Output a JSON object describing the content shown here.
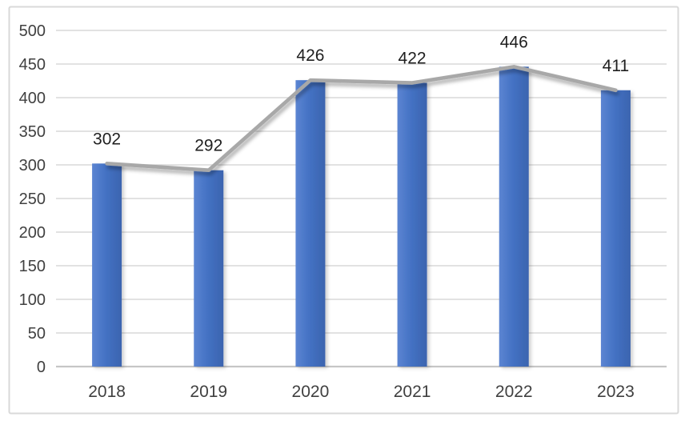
{
  "chart_data": {
    "type": "bar",
    "subtype": "bar-with-line-overlay",
    "title": "",
    "xlabel": "",
    "ylabel": "",
    "categories": [
      "2018",
      "2019",
      "2020",
      "2021",
      "2022",
      "2023"
    ],
    "series": [
      {
        "name": "bars",
        "type": "bar",
        "values": [
          302,
          292,
          426,
          422,
          446,
          411
        ]
      },
      {
        "name": "trend-line",
        "type": "line",
        "values": [
          302,
          292,
          426,
          422,
          446,
          411
        ]
      }
    ],
    "data_labels": [
      "302",
      "292",
      "426",
      "422",
      "446",
      "411"
    ],
    "ylim": [
      0,
      500
    ],
    "ytick_step": 50,
    "ytick_labels": [
      "0",
      "50",
      "100",
      "150",
      "200",
      "250",
      "300",
      "350",
      "400",
      "450",
      "500"
    ],
    "grid": true,
    "legend": false,
    "colors": {
      "bar_light": "#5c85d2",
      "bar_mid": "#4472c4",
      "bar_dark": "#3b64af",
      "line": "#a8a8a8",
      "gridline": "#d9d9d9",
      "axis_line": "#c6c6c6",
      "tick_label": "#404040",
      "data_label": "#1f1f1f",
      "frame_border": "#d9d9d9",
      "background": "#ffffff"
    }
  }
}
